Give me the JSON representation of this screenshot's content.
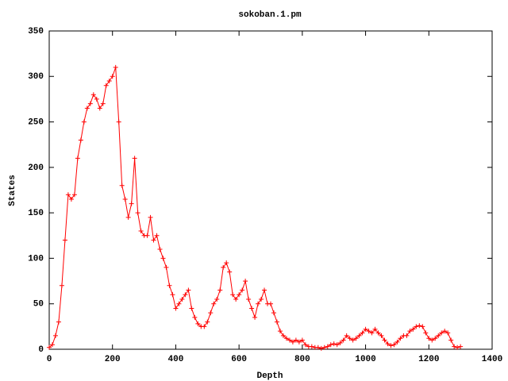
{
  "chart_data": {
    "type": "line",
    "title": "sokoban.1.pm",
    "x_label": "Depth",
    "y_label": "States",
    "x": [
      0,
      10,
      20,
      30,
      40,
      50,
      60,
      70,
      80,
      90,
      100,
      110,
      120,
      130,
      140,
      150,
      160,
      170,
      180,
      190,
      200,
      210,
      220,
      230,
      240,
      250,
      260,
      270,
      280,
      290,
      300,
      310,
      320,
      330,
      340,
      350,
      360,
      370,
      380,
      390,
      400,
      410,
      420,
      430,
      440,
      450,
      460,
      470,
      480,
      490,
      500,
      510,
      520,
      530,
      540,
      550,
      560,
      570,
      580,
      590,
      600,
      610,
      620,
      630,
      640,
      650,
      660,
      670,
      680,
      690,
      700,
      710,
      720,
      730,
      740,
      750,
      760,
      770,
      780,
      790,
      800,
      810,
      820,
      830,
      840,
      850,
      860,
      870,
      880,
      890,
      900,
      910,
      920,
      930,
      940,
      950,
      960,
      970,
      980,
      990,
      1000,
      1010,
      1020,
      1030,
      1040,
      1050,
      1060,
      1070,
      1080,
      1090,
      1100,
      1110,
      1120,
      1130,
      1140,
      1150,
      1160,
      1170,
      1180,
      1190,
      1200,
      1210,
      1220,
      1230,
      1240,
      1250,
      1260,
      1270,
      1280,
      1290,
      1300
    ],
    "series": [
      {
        "name": "sokoban.1.pm",
        "color": "#ff0000",
        "values": [
          2,
          5,
          15,
          30,
          70,
          120,
          170,
          165,
          170,
          210,
          230,
          250,
          265,
          270,
          280,
          275,
          265,
          270,
          290,
          295,
          300,
          310,
          250,
          180,
          165,
          145,
          160,
          210,
          150,
          130,
          125,
          125,
          145,
          120,
          125,
          110,
          100,
          90,
          70,
          60,
          45,
          50,
          55,
          60,
          65,
          45,
          35,
          28,
          25,
          25,
          30,
          40,
          50,
          55,
          65,
          90,
          95,
          85,
          60,
          55,
          60,
          65,
          75,
          55,
          45,
          35,
          50,
          55,
          65,
          50,
          50,
          40,
          30,
          20,
          15,
          12,
          10,
          8,
          10,
          8,
          10,
          5,
          3,
          3,
          2,
          2,
          1,
          2,
          3,
          5,
          6,
          5,
          7,
          10,
          15,
          12,
          10,
          12,
          15,
          18,
          22,
          20,
          18,
          22,
          18,
          15,
          10,
          6,
          4,
          5,
          8,
          12,
          15,
          15,
          20,
          22,
          25,
          26,
          25,
          18,
          12,
          10,
          12,
          15,
          18,
          20,
          18,
          10,
          3,
          2,
          3
        ]
      }
    ],
    "xlim": [
      0,
      1400
    ],
    "ylim": [
      0,
      350
    ],
    "xticks": [
      0,
      200,
      400,
      600,
      800,
      1000,
      1200,
      1400
    ],
    "yticks": [
      0,
      50,
      100,
      150,
      200,
      250,
      300,
      350
    ]
  }
}
